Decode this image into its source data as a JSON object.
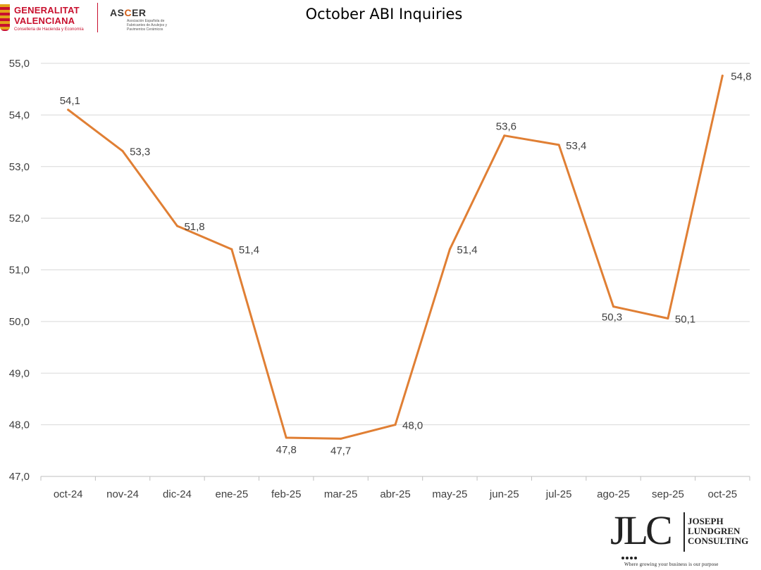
{
  "header": {
    "generalitat": {
      "line1": "GENERALITAT",
      "line2": "VALENCIANA",
      "subline": "Conselleria de Hacienda y Economía"
    },
    "ascer": {
      "name_prefix": "AS",
      "name_accent": "C",
      "name_suffix": "ER",
      "subline": "Asociación Española de Fabricantes de Azulejos y Pavimentos Cerámicos"
    }
  },
  "footer": {
    "jlc_mark": "JLC",
    "company_line1": "JOSEPH",
    "company_line2": "LUNDGREN",
    "company_line3": "CONSULTING",
    "tagline": "Where growing your business is our purpose"
  },
  "colors": {
    "line": "#E07F34",
    "grid": "#d9d9d9",
    "axis": "#bfbfbf",
    "brand_red": "#c8102e",
    "ascer_accent": "#d4601a"
  },
  "chart_data": {
    "type": "line",
    "title": "October ABI Inquiries",
    "xlabel": "",
    "ylabel": "",
    "categories": [
      "oct-24",
      "nov-24",
      "dic-24",
      "ene-25",
      "feb-25",
      "mar-25",
      "abr-25",
      "may-25",
      "jun-25",
      "jul-25",
      "ago-25",
      "sep-25",
      "oct-25"
    ],
    "values": [
      54.1,
      53.3,
      51.85,
      51.4,
      47.75,
      47.73,
      48.0,
      51.4,
      53.6,
      53.42,
      50.29,
      50.06,
      54.76
    ],
    "data_labels": [
      "54,1",
      "53,3",
      "51,8",
      "51,4",
      "47,8",
      "47,7",
      "48,0",
      "51,4",
      "53,6",
      "53,4",
      "50,3",
      "50,1",
      "54,8"
    ],
    "ylim": [
      47.0,
      55.0
    ],
    "yticks": [
      47.0,
      48.0,
      49.0,
      50.0,
      51.0,
      52.0,
      53.0,
      54.0,
      55.0
    ],
    "ytick_labels": [
      "47,0",
      "48,0",
      "49,0",
      "50,0",
      "51,0",
      "52,0",
      "53,0",
      "54,0",
      "55,0"
    ],
    "grid": true,
    "legend": "none"
  }
}
